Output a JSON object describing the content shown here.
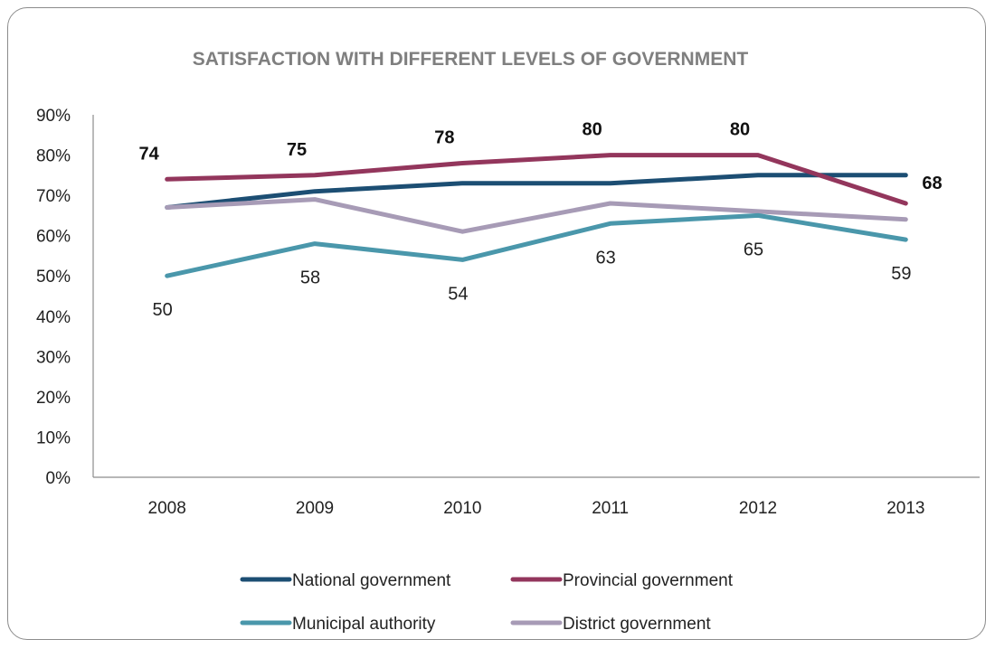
{
  "chart_data": {
    "type": "line",
    "title": "SATISFACTION WITH DIFFERENT LEVELS OF GOVERNMENT",
    "xlabel": "",
    "ylabel": "",
    "categories": [
      "2008",
      "2009",
      "2010",
      "2011",
      "2012",
      "2013"
    ],
    "y_ticks": [
      "0%",
      "10%",
      "20%",
      "30%",
      "40%",
      "50%",
      "60%",
      "70%",
      "80%",
      "90%"
    ],
    "ylim": [
      0,
      90
    ],
    "grid": false,
    "legend_position": "bottom",
    "series": [
      {
        "name": "National government",
        "color": "#1c4e73",
        "values": [
          67,
          71,
          73,
          73,
          75,
          75
        ],
        "labels": []
      },
      {
        "name": "Provincial government",
        "color": "#93365c",
        "values": [
          74,
          75,
          78,
          80,
          80,
          68
        ],
        "labels": [
          "74",
          "75",
          "78",
          "80",
          "80",
          "68"
        ],
        "label_style": "bold"
      },
      {
        "name": "Municipal authority",
        "color": "#4a97ab",
        "values": [
          50,
          58,
          54,
          63,
          65,
          59
        ],
        "labels": [
          "50",
          "58",
          "54",
          "63",
          "65",
          "59"
        ],
        "label_style": "normal"
      },
      {
        "name": "District government",
        "color": "#a79bb6",
        "values": [
          67,
          69,
          61,
          68,
          66,
          64
        ],
        "labels": []
      }
    ]
  }
}
